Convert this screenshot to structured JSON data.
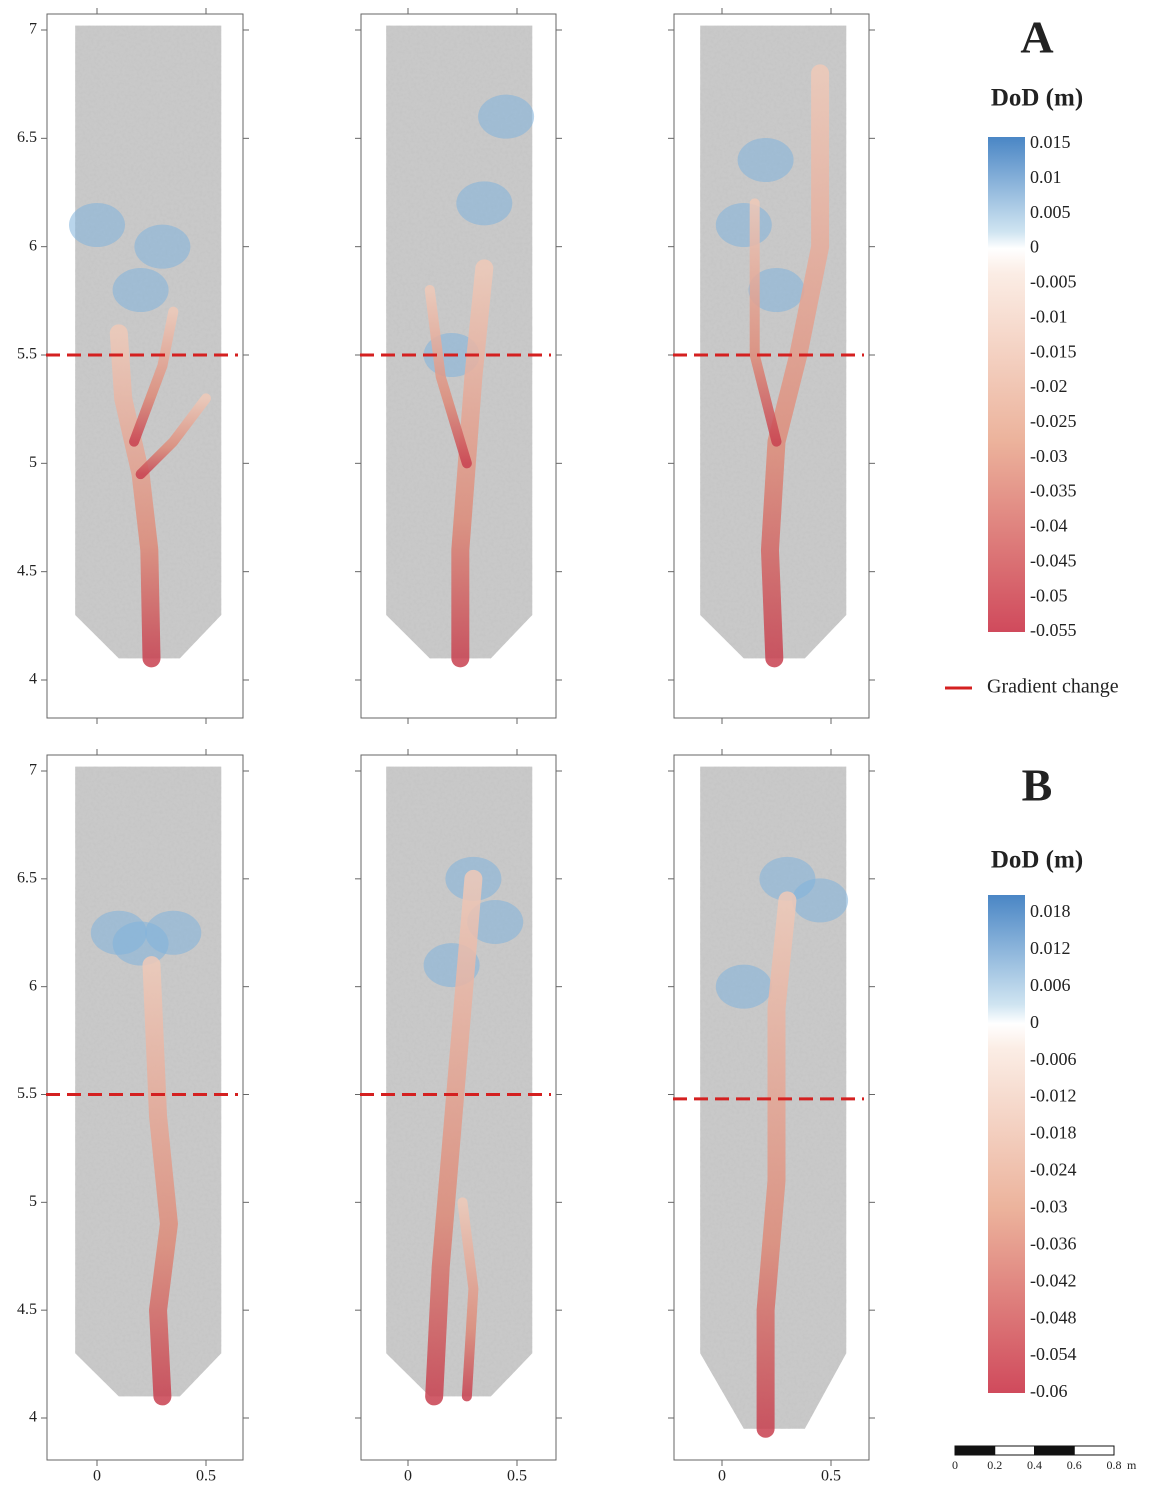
{
  "y_axis": {
    "ticks": [
      4,
      4.5,
      5,
      5.5,
      6,
      6.5,
      7
    ]
  },
  "x_axis": {
    "ticks": [
      0,
      0.5
    ]
  },
  "rows": [
    {
      "label": "A",
      "gradient_change": [
        5.5,
        5.5,
        5.5
      ],
      "legend_title": "DoD (m)",
      "legend_ticks": [
        0.015,
        0.01,
        0.005,
        0,
        -0.005,
        -0.01,
        -0.015,
        -0.02,
        -0.025,
        -0.03,
        -0.035,
        -0.04,
        -0.045,
        -0.05,
        -0.055
      ]
    },
    {
      "label": "B",
      "gradient_change": [
        5.5,
        5.5,
        5.48
      ],
      "legend_title": "DoD (m)",
      "legend_ticks": [
        0.018,
        0.012,
        0.006,
        0,
        -0.006,
        -0.012,
        -0.018,
        -0.024,
        -0.03,
        -0.036,
        -0.042,
        -0.048,
        -0.054,
        -0.06
      ]
    }
  ],
  "gradient_legend": "Gradient change",
  "scale_bar": {
    "ticks": [
      0,
      0.2,
      0.4,
      0.6,
      0.8
    ],
    "unit": "m"
  }
}
